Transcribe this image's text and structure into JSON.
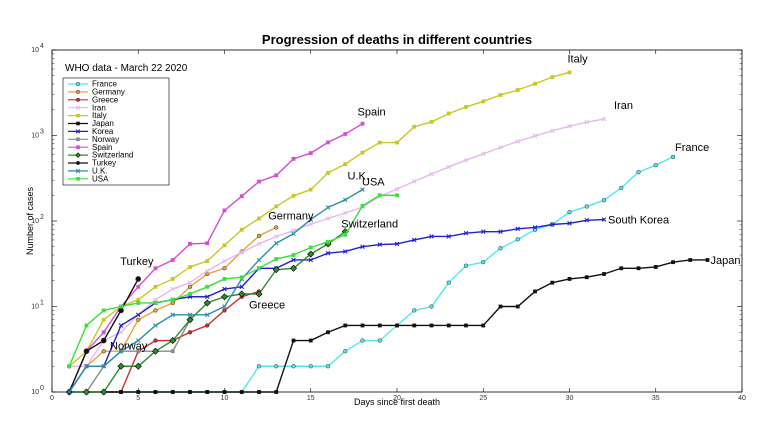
{
  "chart_data": {
    "type": "line",
    "title": "Progression of deaths in different countries",
    "annotation": "WHO data - March 22 2020",
    "xlabel": "Days since first death",
    "ylabel": "Number of cases",
    "xlim": [
      0,
      40
    ],
    "ylim": [
      1,
      10000
    ],
    "yscale": "log",
    "x_ticks": [
      0,
      5,
      10,
      15,
      20,
      25,
      30,
      35,
      40
    ],
    "y_ticks": [
      {
        "value": 1,
        "base": "10",
        "exp": "0"
      },
      {
        "value": 10,
        "base": "10",
        "exp": "1"
      },
      {
        "value": 100,
        "base": "10",
        "exp": "2"
      },
      {
        "value": 1000,
        "base": "10",
        "exp": "3"
      },
      {
        "value": 10000,
        "base": "10",
        "exp": "4"
      }
    ],
    "legend_position": "top-left",
    "series": [
      {
        "name": "France",
        "color": "#4fe8ea",
        "marker": "circle",
        "end_label": "France",
        "points": [
          [
            1,
            1
          ],
          [
            2,
            1
          ],
          [
            3,
            1
          ],
          [
            4,
            1
          ],
          [
            5,
            1
          ],
          [
            6,
            1
          ],
          [
            7,
            1
          ],
          [
            8,
            1
          ],
          [
            9,
            1
          ],
          [
            10,
            1
          ],
          [
            11,
            1
          ],
          [
            12,
            2
          ],
          [
            13,
            2
          ],
          [
            14,
            2
          ],
          [
            15,
            2
          ],
          [
            16,
            2
          ],
          [
            17,
            3
          ],
          [
            18,
            4
          ],
          [
            19,
            4
          ],
          [
            20,
            6
          ],
          [
            21,
            9
          ],
          [
            22,
            10
          ],
          [
            23,
            19
          ],
          [
            24,
            30
          ],
          [
            25,
            33
          ],
          [
            26,
            48
          ],
          [
            27,
            61
          ],
          [
            28,
            79
          ],
          [
            29,
            91
          ],
          [
            30,
            127
          ],
          [
            31,
            148
          ],
          [
            32,
            175
          ],
          [
            33,
            244
          ],
          [
            34,
            372
          ],
          [
            35,
            450
          ],
          [
            36,
            562
          ]
        ]
      },
      {
        "name": "Germany",
        "color": "#e8a338",
        "marker": "circle",
        "end_label": "Germany",
        "points": [
          [
            1,
            2
          ],
          [
            2,
            2
          ],
          [
            3,
            3
          ],
          [
            4,
            3
          ],
          [
            5,
            7
          ],
          [
            6,
            9
          ],
          [
            7,
            11
          ],
          [
            8,
            17
          ],
          [
            9,
            24
          ],
          [
            10,
            28
          ],
          [
            11,
            44
          ],
          [
            12,
            67
          ],
          [
            13,
            84
          ]
        ]
      },
      {
        "name": "Greece",
        "color": "#d62828",
        "marker": "circle",
        "end_label": "Greece",
        "points": [
          [
            3,
            1
          ],
          [
            4,
            1
          ],
          [
            5,
            3
          ],
          [
            6,
            4
          ],
          [
            7,
            4
          ],
          [
            8,
            5
          ],
          [
            9,
            6
          ],
          [
            10,
            9
          ],
          [
            11,
            13
          ],
          [
            12,
            15
          ]
        ]
      },
      {
        "name": "Iran",
        "color": "#e8b8ee",
        "marker": "x",
        "end_label": "Iran",
        "points": [
          [
            1,
            2
          ],
          [
            2,
            2
          ],
          [
            3,
            4
          ],
          [
            4,
            5
          ],
          [
            5,
            8
          ],
          [
            6,
            12
          ],
          [
            7,
            16
          ],
          [
            8,
            19
          ],
          [
            9,
            26
          ],
          [
            10,
            34
          ],
          [
            11,
            43
          ],
          [
            12,
            54
          ],
          [
            13,
            66
          ],
          [
            14,
            77
          ],
          [
            15,
            92
          ],
          [
            16,
            107
          ],
          [
            17,
            124
          ],
          [
            18,
            145
          ],
          [
            19,
            194
          ],
          [
            20,
            237
          ],
          [
            21,
            291
          ],
          [
            22,
            354
          ],
          [
            23,
            429
          ],
          [
            24,
            514
          ],
          [
            25,
            611
          ],
          [
            26,
            724
          ],
          [
            27,
            853
          ],
          [
            28,
            988
          ],
          [
            29,
            1135
          ],
          [
            30,
            1284
          ],
          [
            31,
            1433
          ],
          [
            32,
            1556
          ]
        ]
      },
      {
        "name": "Italy",
        "color": "#c8c822",
        "marker": "square",
        "end_label": "Italy",
        "points": [
          [
            1,
            2
          ],
          [
            2,
            3
          ],
          [
            3,
            7
          ],
          [
            4,
            10
          ],
          [
            5,
            12
          ],
          [
            6,
            17
          ],
          [
            7,
            21
          ],
          [
            8,
            29
          ],
          [
            9,
            34
          ],
          [
            10,
            52
          ],
          [
            11,
            79
          ],
          [
            12,
            107
          ],
          [
            13,
            148
          ],
          [
            14,
            197
          ],
          [
            15,
            233
          ],
          [
            16,
            366
          ],
          [
            17,
            463
          ],
          [
            18,
            631
          ],
          [
            19,
            827
          ],
          [
            20,
            827
          ],
          [
            21,
            1266
          ],
          [
            22,
            1441
          ],
          [
            23,
            1809
          ],
          [
            24,
            2158
          ],
          [
            25,
            2503
          ],
          [
            26,
            2978
          ],
          [
            27,
            3405
          ],
          [
            28,
            4032
          ],
          [
            29,
            4825
          ],
          [
            30,
            5476
          ]
        ]
      },
      {
        "name": "Japan",
        "color": "#111111",
        "marker": "square",
        "end_label": "Japan",
        "points": [
          [
            1,
            1
          ],
          [
            2,
            1
          ],
          [
            3,
            1
          ],
          [
            4,
            1
          ],
          [
            5,
            1
          ],
          [
            6,
            1
          ],
          [
            7,
            1
          ],
          [
            8,
            1
          ],
          [
            9,
            1
          ],
          [
            10,
            1
          ],
          [
            11,
            1
          ],
          [
            12,
            1
          ],
          [
            13,
            1
          ],
          [
            14,
            4
          ],
          [
            15,
            4
          ],
          [
            16,
            5
          ],
          [
            17,
            6
          ],
          [
            18,
            6
          ],
          [
            19,
            6
          ],
          [
            20,
            6
          ],
          [
            21,
            6
          ],
          [
            22,
            6
          ],
          [
            23,
            6
          ],
          [
            24,
            6
          ],
          [
            25,
            6
          ],
          [
            26,
            10
          ],
          [
            27,
            10
          ],
          [
            28,
            15
          ],
          [
            29,
            19
          ],
          [
            30,
            21
          ],
          [
            31,
            22
          ],
          [
            32,
            24
          ],
          [
            33,
            28
          ],
          [
            34,
            28
          ],
          [
            35,
            29
          ],
          [
            36,
            33
          ],
          [
            37,
            35
          ],
          [
            38,
            35
          ]
        ]
      },
      {
        "name": "Korea",
        "color": "#2222cc",
        "marker": "x",
        "end_label": "South Korea",
        "points": [
          [
            1,
            1
          ],
          [
            2,
            2
          ],
          [
            3,
            2
          ],
          [
            4,
            6
          ],
          [
            5,
            8
          ],
          [
            6,
            11
          ],
          [
            7,
            12
          ],
          [
            8,
            13
          ],
          [
            9,
            13
          ],
          [
            10,
            16
          ],
          [
            11,
            17
          ],
          [
            12,
            28
          ],
          [
            13,
            28
          ],
          [
            14,
            35
          ],
          [
            15,
            35
          ],
          [
            16,
            42
          ],
          [
            17,
            44
          ],
          [
            18,
            50
          ],
          [
            19,
            53
          ],
          [
            20,
            54
          ],
          [
            21,
            60
          ],
          [
            22,
            66
          ],
          [
            23,
            66
          ],
          [
            24,
            72
          ],
          [
            25,
            75
          ],
          [
            26,
            75
          ],
          [
            27,
            81
          ],
          [
            28,
            84
          ],
          [
            29,
            91
          ],
          [
            30,
            94
          ],
          [
            31,
            102
          ],
          [
            32,
            104
          ]
        ]
      },
      {
        "name": "Norway",
        "color": "#8a8a8a",
        "marker": "square",
        "end_label": "Norway",
        "points": [
          [
            1,
            1
          ],
          [
            2,
            1
          ],
          [
            3,
            2
          ],
          [
            4,
            3
          ],
          [
            5,
            3
          ],
          [
            6,
            3
          ],
          [
            7,
            3
          ],
          [
            8,
            7
          ]
        ]
      },
      {
        "name": "Spain",
        "color": "#d64bd6",
        "marker": "square",
        "end_label": "Spain",
        "points": [
          [
            1,
            1
          ],
          [
            2,
            3
          ],
          [
            3,
            5
          ],
          [
            4,
            10
          ],
          [
            5,
            17
          ],
          [
            6,
            28
          ],
          [
            7,
            35
          ],
          [
            8,
            54
          ],
          [
            9,
            55
          ],
          [
            10,
            133
          ],
          [
            11,
            195
          ],
          [
            12,
            289
          ],
          [
            13,
            342
          ],
          [
            14,
            533
          ],
          [
            15,
            623
          ],
          [
            16,
            830
          ],
          [
            17,
            1043
          ],
          [
            18,
            1375
          ]
        ]
      },
      {
        "name": "Switzerland",
        "color": "#2e8b2e",
        "marker": "diamond",
        "end_label": "Switzerland",
        "points": [
          [
            1,
            1
          ],
          [
            2,
            1
          ],
          [
            3,
            1
          ],
          [
            4,
            2
          ],
          [
            5,
            2
          ],
          [
            6,
            3
          ],
          [
            7,
            4
          ],
          [
            8,
            7
          ],
          [
            9,
            11
          ],
          [
            10,
            13
          ],
          [
            11,
            14
          ],
          [
            12,
            14
          ],
          [
            13,
            27
          ],
          [
            14,
            28
          ],
          [
            15,
            41
          ],
          [
            16,
            54
          ],
          [
            17,
            75
          ]
        ]
      },
      {
        "name": "Turkey",
        "color": "#111111",
        "marker": "circle",
        "end_label": "Turkey",
        "points": [
          [
            1,
            1
          ],
          [
            2,
            3
          ],
          [
            3,
            4
          ],
          [
            4,
            9
          ],
          [
            5,
            21
          ]
        ]
      },
      {
        "name": "U.K.",
        "color": "#2a8fa8",
        "marker": "x",
        "end_label": "U.K.",
        "points": [
          [
            1,
            1
          ],
          [
            2,
            2
          ],
          [
            3,
            2
          ],
          [
            4,
            3
          ],
          [
            5,
            4
          ],
          [
            6,
            6
          ],
          [
            7,
            8
          ],
          [
            8,
            8
          ],
          [
            9,
            8
          ],
          [
            10,
            10
          ],
          [
            11,
            21
          ],
          [
            12,
            35
          ],
          [
            13,
            55
          ],
          [
            14,
            71
          ],
          [
            15,
            104
          ],
          [
            16,
            144
          ],
          [
            17,
            177
          ],
          [
            18,
            233
          ]
        ]
      },
      {
        "name": "USA",
        "color": "#38e038",
        "marker": "square",
        "end_label": "USA",
        "points": [
          [
            1,
            2
          ],
          [
            2,
            6
          ],
          [
            3,
            9
          ],
          [
            4,
            10
          ],
          [
            5,
            11
          ],
          [
            6,
            11
          ],
          [
            7,
            12
          ],
          [
            8,
            14
          ],
          [
            9,
            17
          ],
          [
            10,
            21
          ],
          [
            11,
            22
          ],
          [
            12,
            28
          ],
          [
            13,
            36
          ],
          [
            14,
            40
          ],
          [
            15,
            49
          ],
          [
            16,
            57
          ],
          [
            17,
            69
          ],
          [
            18,
            150
          ],
          [
            19,
            200
          ],
          [
            20,
            200
          ]
        ]
      }
    ]
  }
}
